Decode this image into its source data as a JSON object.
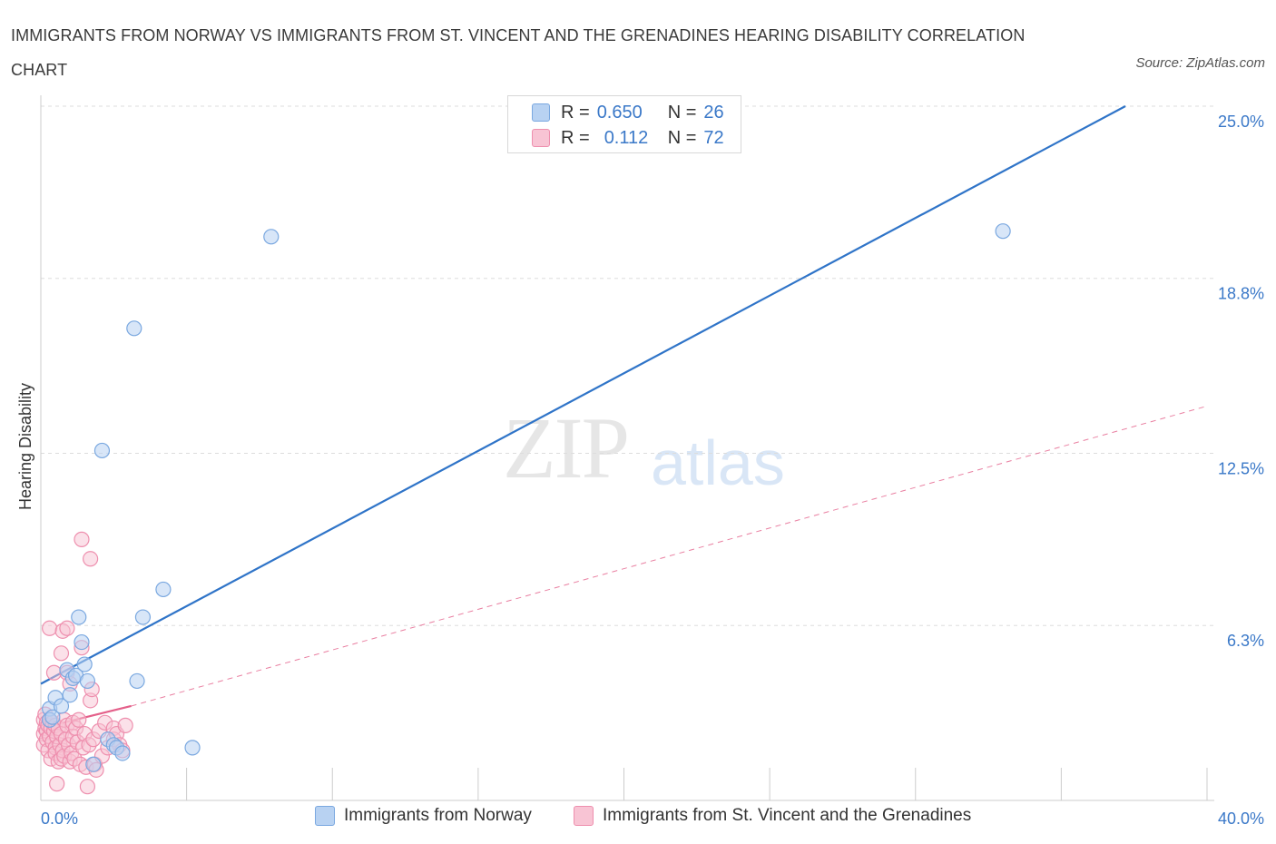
{
  "title": "IMMIGRANTS FROM NORWAY VS IMMIGRANTS FROM ST. VINCENT AND THE GRENADINES HEARING DISABILITY CORRELATION CHART",
  "source": "Source: ZipAtlas.com",
  "watermark": {
    "zip": "ZIP",
    "atlas": "atlas"
  },
  "legend_top": {
    "rows": [
      {
        "r_label": "R =",
        "r_value": "0.650",
        "n_label": "N =",
        "n_value": "26"
      },
      {
        "r_label": "R =",
        "r_value": "0.112",
        "n_label": "N =",
        "n_value": "72"
      }
    ]
  },
  "colors": {
    "norway_fill": "#b8d2f2",
    "norway_stroke": "#7aa8e0",
    "norway_line": "#2f74c8",
    "svg_fill": "#f8c4d4",
    "svg_stroke": "#ee8fae",
    "svg_line": "#e4608a",
    "grid": "#dddddd",
    "axis_label": "#3a78c8"
  },
  "chart_data": {
    "type": "scatter",
    "title": "IMMIGRANTS FROM NORWAY VS IMMIGRANTS FROM ST. VINCENT AND THE GRENADINES HEARING DISABILITY CORRELATION CHART",
    "xlabel": "",
    "ylabel": "Hearing Disability",
    "xlim": [
      0,
      40
    ],
    "ylim": [
      0,
      25
    ],
    "x_tick_labels": [
      "0.0%",
      "40.0%"
    ],
    "y_ticks": [
      6.3,
      12.5,
      18.8,
      25.0
    ],
    "y_tick_labels": [
      "6.3%",
      "12.5%",
      "18.8%",
      "25.0%"
    ],
    "grid": true,
    "legend_placement": "top-center",
    "series": [
      {
        "name": "Immigrants from Norway",
        "R": 0.65,
        "N": 26,
        "trend": {
          "x": [
            0,
            37.2
          ],
          "y": [
            4.2,
            25.0
          ],
          "style": "solid"
        },
        "points": [
          [
            0.3,
            3.3
          ],
          [
            0.3,
            2.9
          ],
          [
            0.4,
            3.0
          ],
          [
            0.5,
            3.7
          ],
          [
            0.7,
            3.4
          ],
          [
            0.9,
            4.7
          ],
          [
            1.0,
            3.8
          ],
          [
            1.1,
            4.4
          ],
          [
            1.2,
            4.5
          ],
          [
            1.3,
            6.6
          ],
          [
            1.4,
            5.7
          ],
          [
            1.5,
            4.9
          ],
          [
            1.6,
            4.3
          ],
          [
            1.8,
            1.3
          ],
          [
            2.1,
            12.6
          ],
          [
            2.3,
            2.2
          ],
          [
            2.5,
            2.0
          ],
          [
            2.6,
            1.9
          ],
          [
            2.8,
            1.7
          ],
          [
            3.2,
            17.0
          ],
          [
            3.3,
            4.3
          ],
          [
            3.5,
            6.6
          ],
          [
            4.2,
            7.6
          ],
          [
            5.2,
            1.9
          ],
          [
            7.9,
            20.3
          ],
          [
            33.0,
            20.5
          ]
        ]
      },
      {
        "name": "Immigrants from St. Vincent and the Grenadines",
        "R": 0.112,
        "N": 72,
        "trend": {
          "x": [
            0,
            3.1
          ],
          "y": [
            2.6,
            3.4
          ],
          "style": "solid"
        },
        "trend_extended": {
          "x": [
            3.1,
            40.0
          ],
          "y": [
            3.4,
            14.2
          ],
          "style": "dashed"
        },
        "points": [
          [
            0.1,
            2.9
          ],
          [
            0.1,
            2.4
          ],
          [
            0.1,
            2.0
          ],
          [
            0.15,
            3.1
          ],
          [
            0.15,
            2.6
          ],
          [
            0.2,
            2.8
          ],
          [
            0.2,
            2.5
          ],
          [
            0.2,
            2.2
          ],
          [
            0.25,
            2.7
          ],
          [
            0.25,
            1.8
          ],
          [
            0.3,
            6.2
          ],
          [
            0.3,
            2.9
          ],
          [
            0.3,
            2.3
          ],
          [
            0.35,
            2.6
          ],
          [
            0.35,
            1.5
          ],
          [
            0.4,
            2.8
          ],
          [
            0.4,
            2.1
          ],
          [
            0.45,
            4.6
          ],
          [
            0.45,
            2.5
          ],
          [
            0.5,
            2.7
          ],
          [
            0.5,
            1.9
          ],
          [
            0.5,
            1.7
          ],
          [
            0.55,
            0.6
          ],
          [
            0.55,
            2.3
          ],
          [
            0.6,
            2.6
          ],
          [
            0.6,
            1.4
          ],
          [
            0.65,
            2.0
          ],
          [
            0.7,
            5.3
          ],
          [
            0.7,
            2.4
          ],
          [
            0.7,
            1.5
          ],
          [
            0.75,
            6.1
          ],
          [
            0.75,
            1.8
          ],
          [
            0.8,
            2.9
          ],
          [
            0.8,
            1.6
          ],
          [
            0.85,
            2.2
          ],
          [
            0.9,
            6.2
          ],
          [
            0.9,
            4.6
          ],
          [
            0.9,
            2.7
          ],
          [
            0.95,
            2.0
          ],
          [
            1.0,
            4.2
          ],
          [
            1.0,
            1.4
          ],
          [
            1.05,
            1.7
          ],
          [
            1.1,
            2.8
          ],
          [
            1.1,
            2.3
          ],
          [
            1.15,
            1.5
          ],
          [
            1.2,
            2.6
          ],
          [
            1.25,
            2.1
          ],
          [
            1.3,
            2.9
          ],
          [
            1.35,
            1.3
          ],
          [
            1.4,
            9.4
          ],
          [
            1.4,
            5.5
          ],
          [
            1.45,
            1.9
          ],
          [
            1.5,
            2.4
          ],
          [
            1.55,
            1.2
          ],
          [
            1.6,
            0.5
          ],
          [
            1.65,
            2.0
          ],
          [
            1.7,
            8.7
          ],
          [
            1.7,
            3.6
          ],
          [
            1.75,
            4.0
          ],
          [
            1.8,
            2.2
          ],
          [
            1.85,
            1.3
          ],
          [
            1.9,
            1.1
          ],
          [
            2.0,
            2.5
          ],
          [
            2.1,
            1.6
          ],
          [
            2.2,
            2.8
          ],
          [
            2.3,
            1.9
          ],
          [
            2.5,
            2.6
          ],
          [
            2.5,
            2.2
          ],
          [
            2.6,
            2.4
          ],
          [
            2.7,
            2.0
          ],
          [
            2.8,
            1.8
          ],
          [
            2.9,
            2.7
          ]
        ]
      }
    ]
  },
  "axes": {
    "ylabel": "Hearing Disability",
    "x_left_label": "0.0%",
    "x_right_label": "40.0%",
    "y_labels": [
      "25.0%",
      "18.8%",
      "12.5%",
      "6.3%"
    ]
  },
  "legend_bottom": {
    "items": [
      {
        "label": "Immigrants from Norway"
      },
      {
        "label": "Immigrants from St. Vincent and the Grenadines"
      }
    ]
  }
}
